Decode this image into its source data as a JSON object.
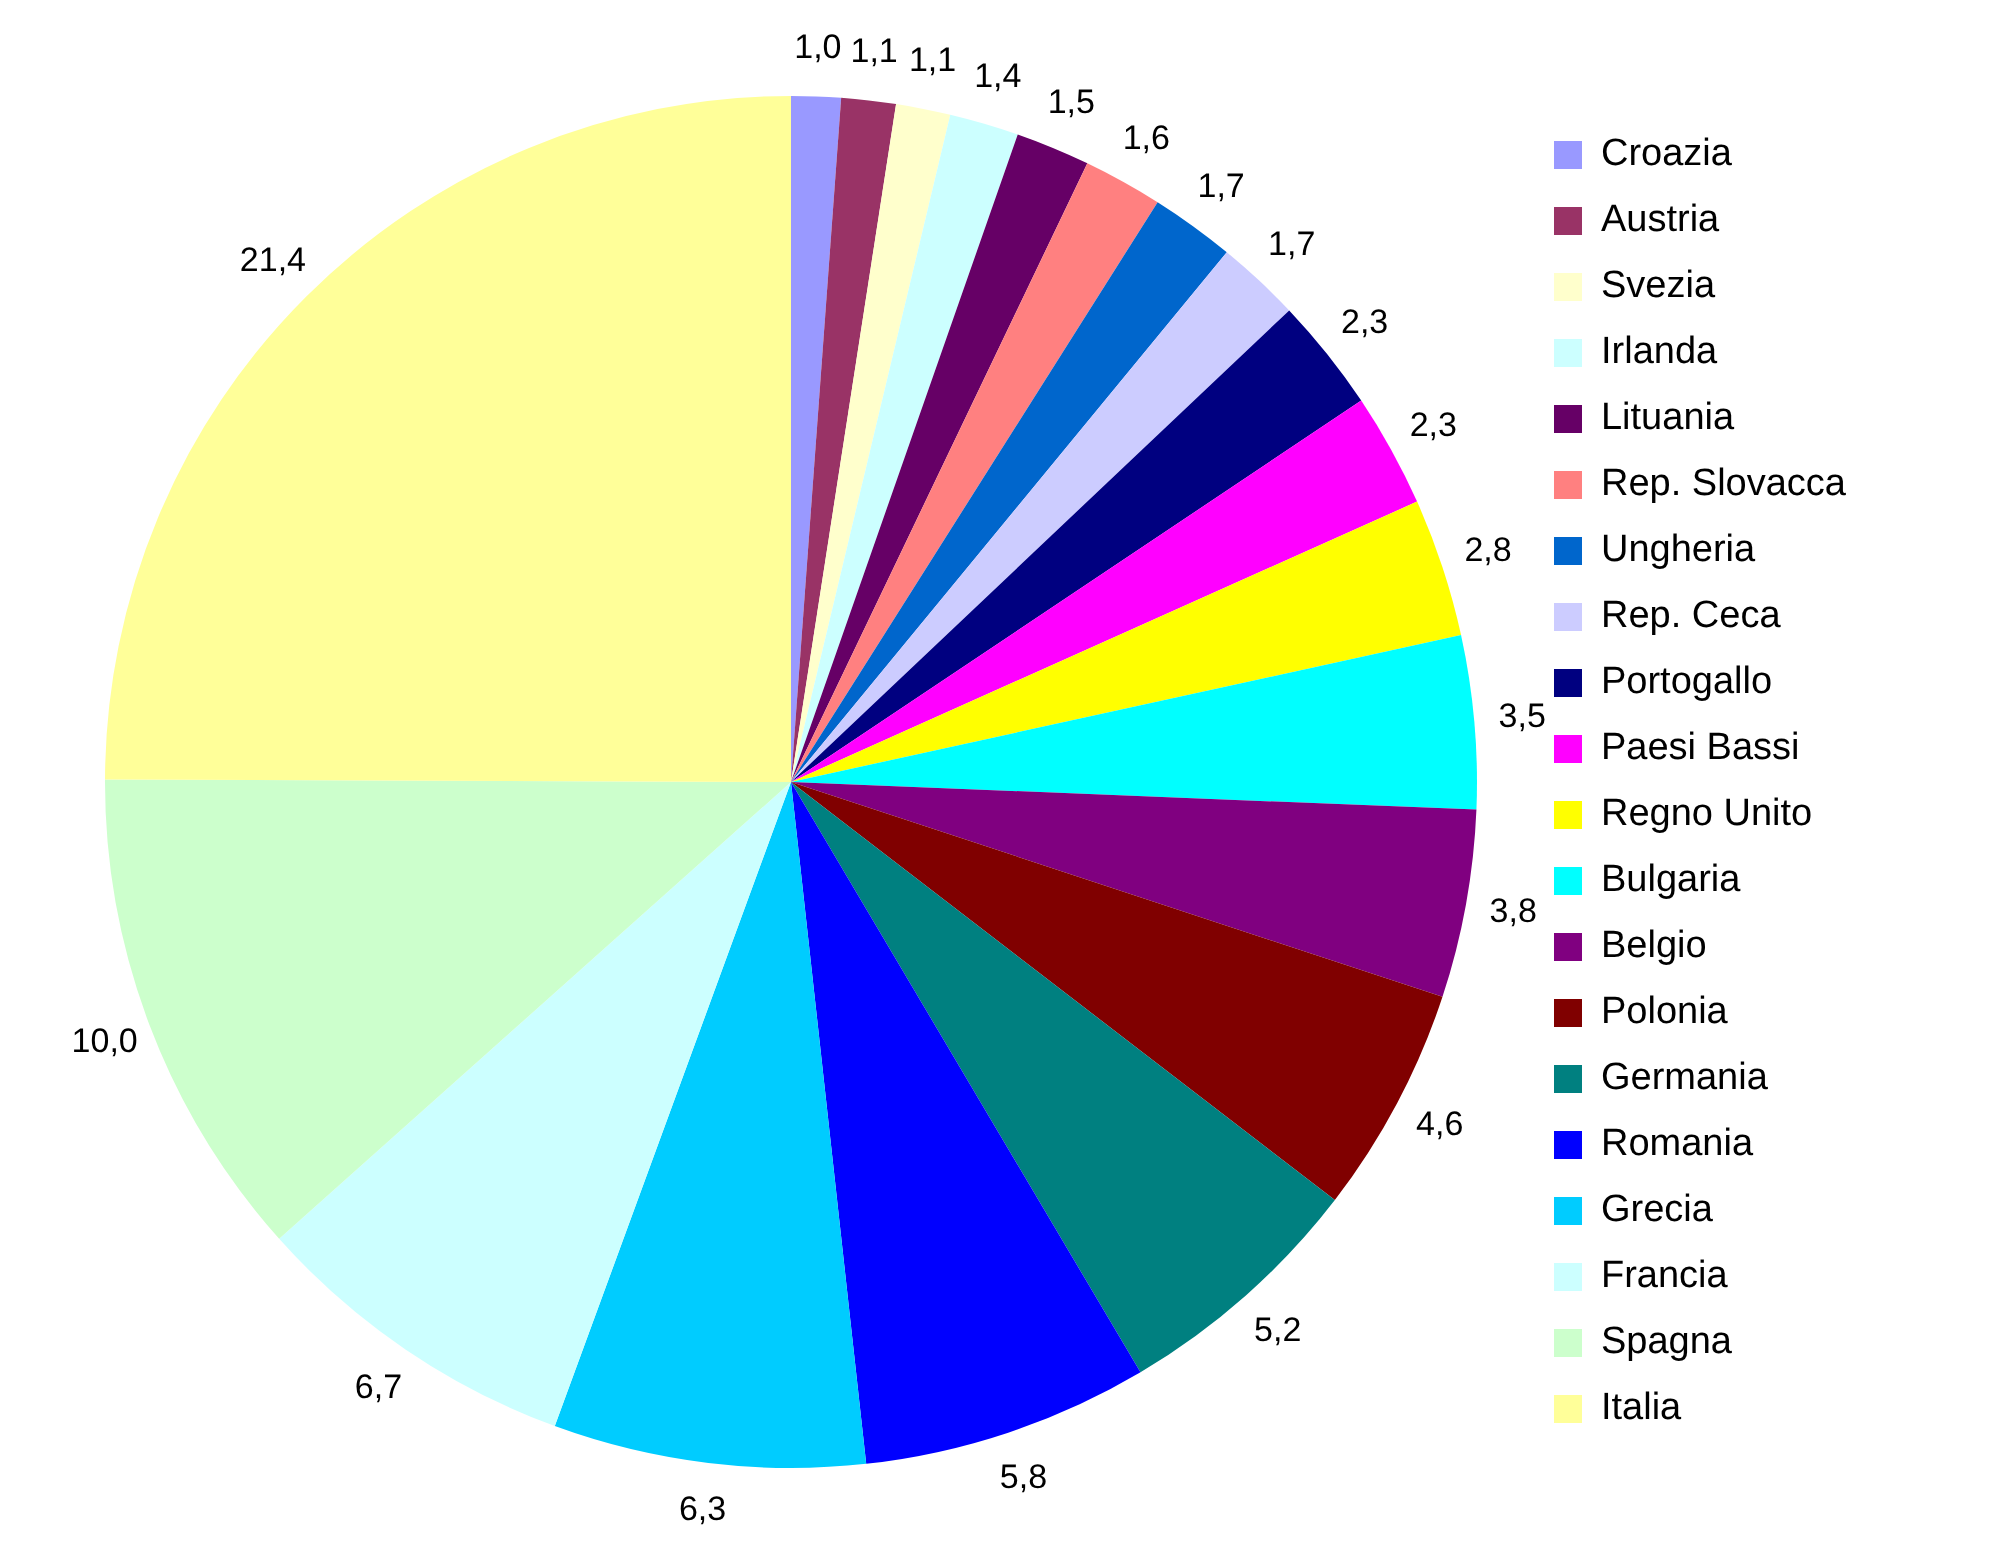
{
  "chart_data": {
    "type": "pie",
    "legend": "right",
    "categories": [
      "Croazia",
      "Austria",
      "Svezia",
      "Irlanda",
      "Lituania",
      "Rep. Slovacca",
      "Ungheria",
      "Rep. Ceca",
      "Portogallo",
      "Paesi Bassi",
      "Regno Unito",
      "Bulgaria",
      "Belgio",
      "Polonia",
      "Germania",
      "Romania",
      "Grecia",
      "Francia",
      "Spagna",
      "Italia"
    ],
    "values": [
      1.0,
      1.1,
      1.1,
      1.4,
      1.5,
      1.6,
      1.7,
      1.7,
      2.3,
      2.3,
      2.8,
      3.5,
      3.8,
      4.6,
      5.2,
      5.8,
      6.3,
      6.7,
      10.0,
      21.4
    ],
    "value_labels": [
      "1,0",
      "1,1",
      "1,1",
      "1,4",
      "1,5",
      "1,6",
      "1,7",
      "1,7",
      "2,3",
      "2,3",
      "2,8",
      "3,5",
      "3,8",
      "4,6",
      "5,2",
      "5,8",
      "6,3",
      "6,7",
      "10,0",
      "21,4"
    ],
    "colors": [
      "#9999ff",
      "#993366",
      "#ffffcc",
      "#ccffff",
      "#660066",
      "#ff8080",
      "#0066cc",
      "#ccccff",
      "#000080",
      "#ff00ff",
      "#ffff00",
      "#00ffff",
      "#800080",
      "#800000",
      "#008080",
      "#0000ff",
      "#00ccff",
      "#ccffff",
      "#ccffcc",
      "#ffff99"
    ]
  }
}
